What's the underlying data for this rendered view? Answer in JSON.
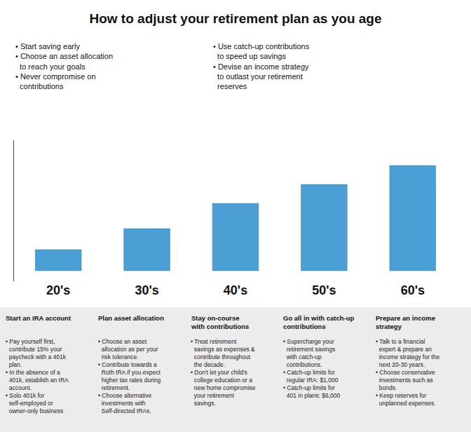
{
  "chart_data": {
    "type": "bar",
    "title": "How to adjust your retirement plan as you age",
    "categories": [
      "20's",
      "30's",
      "40's",
      "50's",
      "60's"
    ],
    "values": [
      1.0,
      2.0,
      3.2,
      4.1,
      5.0
    ],
    "color": "#4a9fd4",
    "ylim": [
      -0.5,
      6.2
    ],
    "yticks": [],
    "grid": false,
    "tick_labels": "x",
    "annotations": {
      "bullets": [
        "• Start saving early\n• Choose an asset allocation\n  to reach your goals\n• Never compromise on\n  contributions",
        "• Use catch-up contributions\n  to speed up savings\n• Devise an income strategy\n  to outlast your retirement\n  reserves"
      ],
      "subtitles": [
        "Start an IRA account",
        "Plan asset allocation",
        "Stay on-course\nwith contributions",
        "Go all in with catch-up\ncontributions",
        "Prepare an income\nstrategy"
      ],
      "details": [
        "• Pay yourself first,\n  contribute 15% your\n  paycheck with a 401k\n  plan.\n• In the absence of a\n  401k, establish an IRA\n  account.\n• Solo 401k for\n  self-employed or\n  owner-only business",
        "• Choose an asset\n  allocation as per your\n  risk tolerance.\n• Contribute towards a\n  Roth IRA if you expect\n  higher tax rates during\n  retirement.\n• Choose alternative\n  investments with\n  Self-directed IRAs.",
        "• Treat retirement\n  savings as expenses &\n  contribute throughout\n  the decade.\n• Don't let your child's\n  college education or a\n  new home compromise\n  your retirement\n  savings.",
        "• Supercharge your\n  retirement savings\n  with catch-up\n  contributions.\n• Catch-up limits for\n  regular IRA: $1,000\n• Catch-up limits for\n  401 in plans: $6,000",
        "• Talk to a financial\n  expert & prepare an\n  income strategy for the\n  next 20-30 years.\n• Choose conservative\n  investments such as\n  bonds.\n• Keep reserves for\n  unplanned expenses."
      ]
    }
  }
}
